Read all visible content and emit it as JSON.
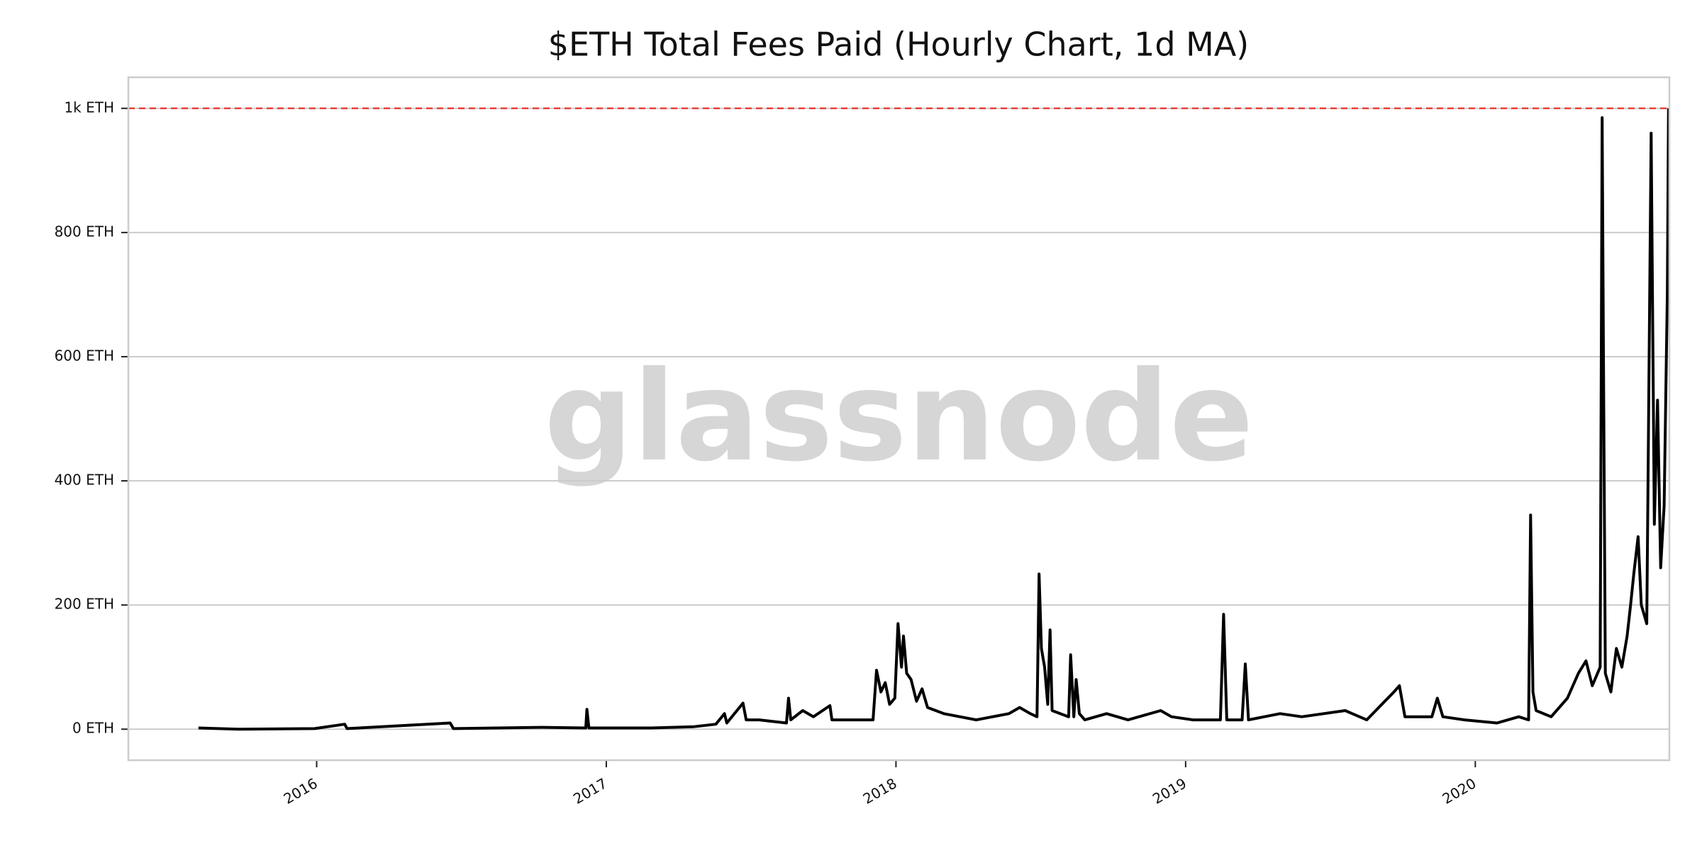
{
  "chart_data": {
    "type": "line",
    "title": "$ETH Total Fees Paid (Hourly Chart, 1d MA)",
    "watermark": "glassnode",
    "xlim": [
      2015.35,
      2020.67
    ],
    "xticks": [
      2016,
      2017,
      2018,
      2019,
      2020
    ],
    "ylim": [
      -50,
      1050
    ],
    "yticks": [
      {
        "value": 0,
        "label": "0 ETH"
      },
      {
        "value": 200,
        "label": "200 ETH"
      },
      {
        "value": 400,
        "label": "400 ETH"
      },
      {
        "value": 600,
        "label": "600 ETH"
      },
      {
        "value": 800,
        "label": "800 ETH"
      },
      {
        "value": 1000,
        "label": "1k ETH"
      }
    ],
    "grid": true,
    "hline": {
      "value": 1000,
      "color": "#e8413c"
    },
    "series": [
      {
        "color": "#000000",
        "x": [
          2015.592,
          2015.73,
          2015.993,
          2016.097,
          2016.105,
          2016.461,
          2016.472,
          2016.779,
          2016.929,
          2016.933,
          2016.94,
          2017.154,
          2017.303,
          2017.378,
          2017.408,
          2017.416,
          2017.472,
          2017.483,
          2017.528,
          2017.622,
          2017.629,
          2017.637,
          2017.678,
          2017.715,
          2017.772,
          2017.779,
          2017.865,
          2017.921,
          2017.933,
          2017.948,
          2017.963,
          2017.978,
          2017.996,
          2018.007,
          2018.019,
          2018.026,
          2018.037,
          2018.052,
          2018.071,
          2018.09,
          2018.109,
          2018.165,
          2018.277,
          2018.39,
          2018.427,
          2018.464,
          2018.487,
          2018.494,
          2018.502,
          2018.513,
          2018.524,
          2018.532,
          2018.539,
          2018.596,
          2018.603,
          2018.614,
          2018.622,
          2018.633,
          2018.652,
          2018.727,
          2018.801,
          2018.914,
          2018.951,
          2019.026,
          2019.12,
          2019.131,
          2019.142,
          2019.195,
          2019.206,
          2019.217,
          2019.326,
          2019.401,
          2019.551,
          2019.625,
          2019.719,
          2019.738,
          2019.757,
          2019.85,
          2019.869,
          2019.888,
          2019.963,
          2020.075,
          2020.15,
          2020.184,
          2020.191,
          2020.199,
          2020.21,
          2020.262,
          2020.318,
          2020.356,
          2020.382,
          2020.404,
          2020.431,
          2020.438,
          2020.442,
          2020.449,
          2020.468,
          2020.487,
          2020.506,
          2020.524,
          2020.536,
          2020.547,
          2020.562,
          2020.573,
          2020.592,
          2020.607,
          2020.618,
          2020.629,
          2020.64,
          2020.652,
          2020.663,
          2020.667
        ],
        "values": [
          2,
          0,
          1,
          8,
          1,
          10,
          1,
          3,
          2,
          32,
          2,
          2,
          4,
          8,
          25,
          10,
          42,
          15,
          15,
          10,
          50,
          15,
          30,
          20,
          38,
          15,
          15,
          15,
          95,
          60,
          75,
          40,
          50,
          170,
          100,
          150,
          90,
          80,
          45,
          65,
          35,
          25,
          15,
          25,
          35,
          25,
          20,
          250,
          130,
          100,
          40,
          160,
          30,
          20,
          120,
          20,
          80,
          25,
          15,
          25,
          15,
          30,
          20,
          15,
          15,
          185,
          15,
          15,
          105,
          15,
          25,
          20,
          30,
          15,
          60,
          70,
          20,
          20,
          50,
          20,
          15,
          10,
          20,
          15,
          345,
          60,
          30,
          20,
          50,
          90,
          110,
          70,
          100,
          985,
          630,
          90,
          60,
          130,
          100,
          150,
          200,
          250,
          310,
          200,
          170,
          960,
          330,
          530,
          260,
          360,
          700,
          1000
        ]
      }
    ]
  }
}
